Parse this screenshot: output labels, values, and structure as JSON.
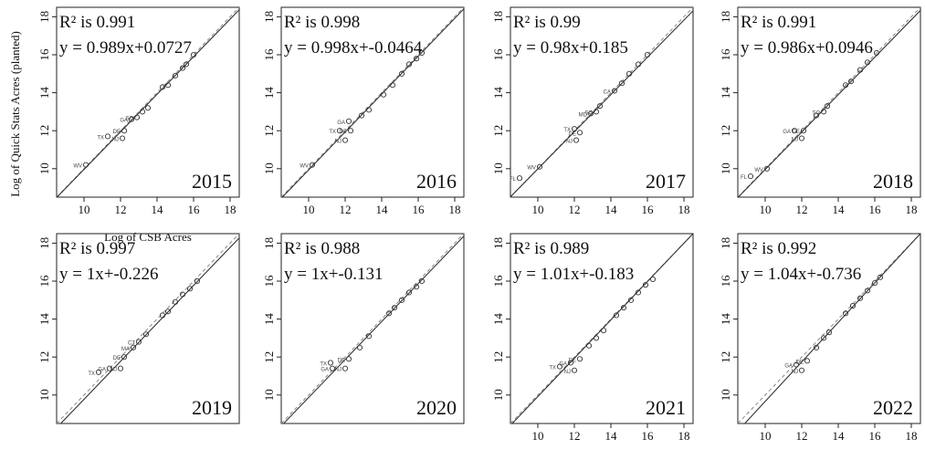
{
  "figure": {
    "ylabel": "Log of Quick Stats Acres (planted)",
    "xlabel": "Log of CSB Acres"
  },
  "colors": {
    "axis": "#222222",
    "fit": "#333333",
    "identity": "#888888",
    "points": "#333333"
  },
  "chart_data": [
    {
      "type": "scatter",
      "year": "2015",
      "r2_label": "R² is 0.991",
      "eq_label": "y = 0.989x+0.0727",
      "xlim": [
        8.5,
        18.5
      ],
      "ylim": [
        8.5,
        18.5
      ],
      "xticks": [
        10,
        12,
        14,
        16,
        18
      ],
      "yticks": [
        10,
        12,
        14,
        16,
        18
      ],
      "slope": 0.989,
      "intercept": 0.0727,
      "show_xticks": true,
      "show_yticks": true,
      "points": [
        {
          "x": 10.1,
          "y": 10.2,
          "label": "WV"
        },
        {
          "x": 11.3,
          "y": 11.7,
          "label": "TX"
        },
        {
          "x": 12.1,
          "y": 11.6,
          "label": "NJ"
        },
        {
          "x": 12.2,
          "y": 12.0,
          "label": "DE"
        },
        {
          "x": 12.6,
          "y": 12.6,
          "label": "GA"
        },
        {
          "x": 12.9,
          "y": 12.7,
          "label": "SC"
        },
        {
          "x": 13.2,
          "y": 13.0,
          "label": ""
        },
        {
          "x": 13.5,
          "y": 13.2,
          "label": ""
        },
        {
          "x": 14.3,
          "y": 14.3,
          "label": ""
        },
        {
          "x": 14.6,
          "y": 14.4,
          "label": ""
        },
        {
          "x": 15.0,
          "y": 14.9,
          "label": ""
        },
        {
          "x": 15.4,
          "y": 15.3,
          "label": ""
        },
        {
          "x": 15.6,
          "y": 15.5,
          "label": ""
        },
        {
          "x": 16.0,
          "y": 16.0,
          "label": ""
        }
      ]
    },
    {
      "type": "scatter",
      "year": "2016",
      "r2_label": "R² is 0.998",
      "eq_label": "y = 0.998x+-0.0464",
      "xlim": [
        8.5,
        18.5
      ],
      "ylim": [
        8.5,
        18.5
      ],
      "xticks": [
        10,
        12,
        14,
        16,
        18
      ],
      "yticks": [
        10,
        12,
        14,
        16,
        18
      ],
      "slope": 0.998,
      "intercept": -0.0464,
      "show_xticks": true,
      "show_yticks": true,
      "points": [
        {
          "x": 10.2,
          "y": 10.2,
          "label": "WV"
        },
        {
          "x": 11.7,
          "y": 12.0,
          "label": "TX"
        },
        {
          "x": 12.0,
          "y": 11.5,
          "label": "NJ"
        },
        {
          "x": 12.2,
          "y": 12.5,
          "label": "GA"
        },
        {
          "x": 12.3,
          "y": 12.0,
          "label": "DE"
        },
        {
          "x": 12.9,
          "y": 12.8,
          "label": ""
        },
        {
          "x": 13.3,
          "y": 13.1,
          "label": ""
        },
        {
          "x": 14.1,
          "y": 13.9,
          "label": ""
        },
        {
          "x": 14.6,
          "y": 14.4,
          "label": ""
        },
        {
          "x": 15.1,
          "y": 15.0,
          "label": ""
        },
        {
          "x": 15.5,
          "y": 15.5,
          "label": ""
        },
        {
          "x": 15.9,
          "y": 15.8,
          "label": ""
        },
        {
          "x": 16.2,
          "y": 16.1,
          "label": ""
        }
      ]
    },
    {
      "type": "scatter",
      "year": "2017",
      "r2_label": "R² is 0.99",
      "eq_label": "y = 0.98x+0.185",
      "xlim": [
        8.5,
        18.5
      ],
      "ylim": [
        8.5,
        18.5
      ],
      "xticks": [
        10,
        12,
        14,
        16,
        18
      ],
      "yticks": [
        10,
        12,
        14,
        16,
        18
      ],
      "slope": 0.98,
      "intercept": 0.185,
      "show_xticks": true,
      "show_yticks": true,
      "points": [
        {
          "x": 9.0,
          "y": 9.5,
          "label": "FL"
        },
        {
          "x": 10.1,
          "y": 10.1,
          "label": "WV"
        },
        {
          "x": 12.0,
          "y": 12.1,
          "label": "TX"
        },
        {
          "x": 12.1,
          "y": 11.5,
          "label": "NJ"
        },
        {
          "x": 12.3,
          "y": 11.9,
          "label": "DE"
        },
        {
          "x": 12.9,
          "y": 12.9,
          "label": "MD"
        },
        {
          "x": 13.2,
          "y": 13.0,
          "label": "SC"
        },
        {
          "x": 13.4,
          "y": 13.3,
          "label": ""
        },
        {
          "x": 14.2,
          "y": 14.1,
          "label": "CA"
        },
        {
          "x": 14.6,
          "y": 14.5,
          "label": ""
        },
        {
          "x": 15.0,
          "y": 15.0,
          "label": ""
        },
        {
          "x": 15.5,
          "y": 15.5,
          "label": ""
        },
        {
          "x": 16.0,
          "y": 16.0,
          "label": ""
        }
      ]
    },
    {
      "type": "scatter",
      "year": "2018",
      "r2_label": "R² is 0.991",
      "eq_label": "y = 0.986x+0.0946",
      "xlim": [
        8.5,
        18.5
      ],
      "ylim": [
        8.5,
        18.5
      ],
      "xticks": [
        10,
        12,
        14,
        16,
        18
      ],
      "yticks": [
        10,
        12,
        14,
        16,
        18
      ],
      "slope": 0.986,
      "intercept": 0.0946,
      "show_xticks": true,
      "show_yticks": true,
      "points": [
        {
          "x": 9.2,
          "y": 9.6,
          "label": "FL"
        },
        {
          "x": 10.1,
          "y": 10.0,
          "label": "WV"
        },
        {
          "x": 11.6,
          "y": 12.0,
          "label": "GA"
        },
        {
          "x": 12.0,
          "y": 11.6,
          "label": "NJ"
        },
        {
          "x": 12.1,
          "y": 12.0,
          "label": "DE"
        },
        {
          "x": 12.8,
          "y": 12.8,
          "label": ""
        },
        {
          "x": 13.2,
          "y": 13.0,
          "label": "SC"
        },
        {
          "x": 13.4,
          "y": 13.3,
          "label": ""
        },
        {
          "x": 14.4,
          "y": 14.4,
          "label": ""
        },
        {
          "x": 14.7,
          "y": 14.6,
          "label": ""
        },
        {
          "x": 15.2,
          "y": 15.2,
          "label": ""
        },
        {
          "x": 15.6,
          "y": 15.6,
          "label": ""
        },
        {
          "x": 16.1,
          "y": 16.1,
          "label": ""
        }
      ]
    },
    {
      "type": "scatter",
      "year": "2019",
      "r2_label": "R² is 0.997",
      "eq_label": "y = 1x+-0.226",
      "xlim": [
        8.5,
        18.5
      ],
      "ylim": [
        8.5,
        18.5
      ],
      "xticks": [
        10,
        12,
        14,
        16,
        18
      ],
      "yticks": [
        10,
        12,
        14,
        16,
        18
      ],
      "slope": 1.0,
      "intercept": -0.226,
      "show_xticks": false,
      "show_yticks": true,
      "points": [
        {
          "x": 10.8,
          "y": 11.2,
          "label": "TX"
        },
        {
          "x": 11.4,
          "y": 11.4,
          "label": "GA"
        },
        {
          "x": 12.0,
          "y": 11.4,
          "label": "NJ"
        },
        {
          "x": 12.2,
          "y": 12.0,
          "label": "DE"
        },
        {
          "x": 12.7,
          "y": 12.5,
          "label": "MA"
        },
        {
          "x": 13.0,
          "y": 12.8,
          "label": "CT"
        },
        {
          "x": 13.4,
          "y": 13.2,
          "label": ""
        },
        {
          "x": 14.3,
          "y": 14.2,
          "label": ""
        },
        {
          "x": 14.6,
          "y": 14.4,
          "label": ""
        },
        {
          "x": 15.0,
          "y": 14.9,
          "label": ""
        },
        {
          "x": 15.4,
          "y": 15.3,
          "label": ""
        },
        {
          "x": 15.8,
          "y": 15.6,
          "label": ""
        },
        {
          "x": 16.2,
          "y": 16.0,
          "label": ""
        }
      ]
    },
    {
      "type": "scatter",
      "year": "2020",
      "r2_label": "R² is 0.988",
      "eq_label": "y = 1x+-0.131",
      "xlim": [
        8.5,
        18.5
      ],
      "ylim": [
        8.5,
        18.5
      ],
      "xticks": [
        10,
        12,
        14,
        16,
        18
      ],
      "yticks": [
        10,
        12,
        14,
        16,
        18
      ],
      "slope": 1.0,
      "intercept": -0.131,
      "show_xticks": false,
      "show_yticks": true,
      "points": [
        {
          "x": 11.2,
          "y": 11.7,
          "label": "TX"
        },
        {
          "x": 11.3,
          "y": 11.4,
          "label": "GA"
        },
        {
          "x": 12.0,
          "y": 11.4,
          "label": "NJ"
        },
        {
          "x": 12.2,
          "y": 11.9,
          "label": "DE"
        },
        {
          "x": 12.8,
          "y": 12.5,
          "label": ""
        },
        {
          "x": 13.3,
          "y": 13.1,
          "label": ""
        },
        {
          "x": 14.4,
          "y": 14.3,
          "label": ""
        },
        {
          "x": 14.7,
          "y": 14.6,
          "label": ""
        },
        {
          "x": 15.1,
          "y": 15.0,
          "label": ""
        },
        {
          "x": 15.5,
          "y": 15.4,
          "label": ""
        },
        {
          "x": 15.9,
          "y": 15.7,
          "label": ""
        },
        {
          "x": 16.2,
          "y": 16.0,
          "label": ""
        }
      ]
    },
    {
      "type": "scatter",
      "year": "2021",
      "r2_label": "R² is 0.989",
      "eq_label": "y = 1.01x+-0.183",
      "xlim": [
        8.5,
        18.5
      ],
      "ylim": [
        8.5,
        18.5
      ],
      "xticks": [
        10,
        12,
        14,
        16,
        18
      ],
      "yticks": [
        10,
        12,
        14,
        16,
        18
      ],
      "slope": 1.01,
      "intercept": -0.183,
      "show_xticks": true,
      "show_yticks": true,
      "points": [
        {
          "x": 11.2,
          "y": 11.5,
          "label": "TX"
        },
        {
          "x": 11.8,
          "y": 11.7,
          "label": "GA"
        },
        {
          "x": 12.0,
          "y": 11.3,
          "label": "NJ"
        },
        {
          "x": 12.3,
          "y": 11.9,
          "label": "DE"
        },
        {
          "x": 12.8,
          "y": 12.6,
          "label": ""
        },
        {
          "x": 13.2,
          "y": 13.0,
          "label": ""
        },
        {
          "x": 13.6,
          "y": 13.4,
          "label": ""
        },
        {
          "x": 14.3,
          "y": 14.2,
          "label": ""
        },
        {
          "x": 14.7,
          "y": 14.6,
          "label": ""
        },
        {
          "x": 15.1,
          "y": 15.0,
          "label": ""
        },
        {
          "x": 15.5,
          "y": 15.4,
          "label": ""
        },
        {
          "x": 15.9,
          "y": 15.8,
          "label": ""
        },
        {
          "x": 16.3,
          "y": 16.1,
          "label": ""
        }
      ]
    },
    {
      "type": "scatter",
      "year": "2022",
      "r2_label": "R² is 0.992",
      "eq_label": "y = 1.04x+-0.736",
      "xlim": [
        8.5,
        18.5
      ],
      "ylim": [
        8.5,
        18.5
      ],
      "xticks": [
        10,
        12,
        14,
        16,
        18
      ],
      "yticks": [
        10,
        12,
        14,
        16,
        18
      ],
      "slope": 1.04,
      "intercept": -0.736,
      "show_xticks": true,
      "show_yticks": true,
      "points": [
        {
          "x": 11.7,
          "y": 11.6,
          "label": "GA"
        },
        {
          "x": 12.0,
          "y": 11.3,
          "label": "NJ"
        },
        {
          "x": 12.3,
          "y": 11.8,
          "label": "DE"
        },
        {
          "x": 12.8,
          "y": 12.5,
          "label": ""
        },
        {
          "x": 13.2,
          "y": 13.0,
          "label": ""
        },
        {
          "x": 13.5,
          "y": 13.3,
          "label": ""
        },
        {
          "x": 14.4,
          "y": 14.3,
          "label": ""
        },
        {
          "x": 14.8,
          "y": 14.7,
          "label": ""
        },
        {
          "x": 15.2,
          "y": 15.1,
          "label": ""
        },
        {
          "x": 15.6,
          "y": 15.5,
          "label": ""
        },
        {
          "x": 16.0,
          "y": 15.9,
          "label": ""
        },
        {
          "x": 16.3,
          "y": 16.2,
          "label": ""
        }
      ]
    }
  ]
}
